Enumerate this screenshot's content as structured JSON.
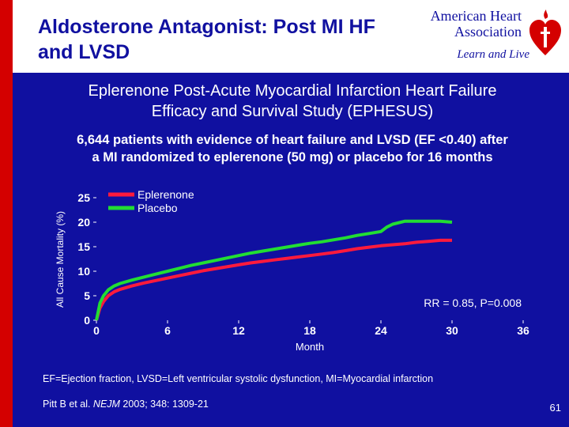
{
  "slide": {
    "title_line1": "Aldosterone Antagonist: Post MI HF",
    "title_line2": "and LVSD",
    "logo_line1": "American Heart",
    "logo_line2": "Association",
    "logo_tagline": "Learn and Live",
    "subtitle_line1": "Eplerenone Post-Acute Myocardial Infarction Heart Failure",
    "subtitle_line2": "Efficacy and Survival Study (EPHESUS)",
    "description_line1": "6,644 patients with evidence of heart failure and LVSD (EF <0.40) after",
    "description_line2": "a MI randomized to eplerenone (50 mg) or placebo for 16 months",
    "footnote": "EF=Ejection fraction, LVSD=Left ventricular systolic dysfunction, MI=Myocardial infarction",
    "citation_authors": "Pitt B et al. ",
    "citation_journal": "NEJM",
    "citation_rest": " 2003; 348: 1309-21",
    "page_number": "61",
    "colors": {
      "background": "#1010a0",
      "accent_red": "#d40000",
      "eplerenone": "#ff1a3c",
      "placebo": "#22dd33"
    }
  },
  "chart_data": {
    "type": "line",
    "title": "",
    "xlabel": "Month",
    "ylabel": "All Cause Mortality (%)",
    "xlim": [
      0,
      36
    ],
    "ylim": [
      0,
      25
    ],
    "xticks": [
      "0",
      "6",
      "12",
      "18",
      "24",
      "30",
      "36"
    ],
    "yticks": [
      "0",
      "5",
      "10",
      "15",
      "20",
      "25"
    ],
    "annotation": "RR = 0.85, P=0.008",
    "series": [
      {
        "name": "Eplerenone",
        "color": "#ff1a3c",
        "x": [
          0,
          0.3,
          0.6,
          1,
          1.5,
          2,
          3,
          4,
          5,
          6,
          7,
          8,
          9,
          10,
          11,
          12,
          13,
          14,
          15,
          16,
          17,
          18,
          19,
          20,
          21,
          22,
          23,
          24,
          25,
          26,
          27,
          28,
          29,
          30
        ],
        "y": [
          0,
          2.5,
          3.8,
          5.0,
          5.8,
          6.3,
          7.0,
          7.6,
          8.1,
          8.6,
          9.1,
          9.6,
          10.1,
          10.5,
          10.9,
          11.3,
          11.7,
          12.0,
          12.3,
          12.6,
          12.9,
          13.2,
          13.5,
          13.8,
          14.2,
          14.6,
          14.9,
          15.2,
          15.4,
          15.6,
          15.9,
          16.1,
          16.3,
          16.3
        ]
      },
      {
        "name": "Placebo",
        "color": "#22dd33",
        "x": [
          0,
          0.3,
          0.6,
          1,
          1.5,
          2,
          3,
          4,
          5,
          6,
          7,
          8,
          9,
          10,
          11,
          12,
          13,
          14,
          15,
          16,
          17,
          18,
          19,
          20,
          21,
          22,
          23,
          24,
          24.5,
          25,
          26,
          27,
          28,
          29,
          30
        ],
        "y": [
          0,
          3.5,
          5.0,
          6.2,
          7.0,
          7.5,
          8.2,
          8.8,
          9.4,
          10.0,
          10.6,
          11.2,
          11.7,
          12.2,
          12.7,
          13.2,
          13.7,
          14.1,
          14.5,
          14.9,
          15.3,
          15.7,
          16.0,
          16.4,
          16.8,
          17.3,
          17.7,
          18.1,
          19.0,
          19.6,
          20.2,
          20.2,
          20.2,
          20.2,
          20.0
        ]
      }
    ],
    "legend": [
      "Eplerenone",
      "Placebo"
    ]
  }
}
